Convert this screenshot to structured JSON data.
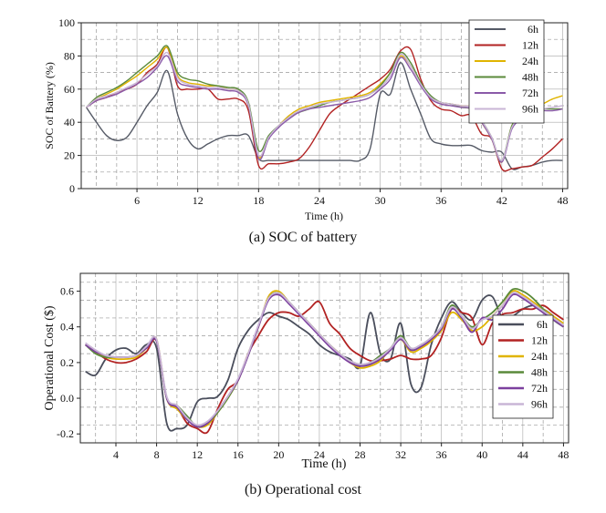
{
  "chart_data": [
    {
      "type": "line",
      "title": "",
      "caption": "(a) SOC of battery",
      "xlabel": "Time (h)",
      "ylabel": "SOC of Battery (%)",
      "xlim": [
        0.5,
        48.5
      ],
      "ylim": [
        0,
        100
      ],
      "xticks": [
        6,
        12,
        18,
        24,
        30,
        36,
        42,
        48
      ],
      "yticks": [
        0,
        20,
        40,
        60,
        80,
        100
      ],
      "legend_position": "top-right",
      "x": [
        1,
        2,
        3,
        4,
        5,
        6,
        7,
        8,
        9,
        10,
        11,
        12,
        13,
        14,
        15,
        16,
        17,
        18,
        19,
        20,
        21,
        22,
        23,
        24,
        25,
        26,
        27,
        28,
        29,
        30,
        31,
        32,
        33,
        34,
        35,
        36,
        37,
        38,
        39,
        40,
        41,
        42,
        43,
        44,
        45,
        46,
        47,
        48
      ],
      "series": [
        {
          "name": "6h",
          "color": "#555a66",
          "values": [
            49,
            40,
            32,
            29,
            31,
            40,
            50,
            58,
            71,
            45,
            30,
            24,
            27,
            30,
            32,
            32,
            32,
            18,
            17,
            17,
            17,
            17,
            17,
            17,
            17,
            17,
            17,
            17,
            24,
            57,
            57,
            76,
            60,
            45,
            30,
            27,
            26,
            26,
            26,
            23,
            22,
            22,
            12,
            13,
            14,
            16,
            17,
            17
          ]
        },
        {
          "name": "12h",
          "color": "#b22222",
          "values": [
            49,
            53,
            55,
            58,
            60,
            63,
            70,
            75,
            85,
            62,
            60,
            60,
            60,
            54,
            54,
            54,
            47,
            14,
            15,
            15,
            16,
            18,
            25,
            35,
            45,
            50,
            54,
            58,
            62,
            66,
            72,
            83,
            84,
            66,
            53,
            48,
            47,
            44,
            44,
            33,
            30,
            12,
            12,
            13,
            14,
            19,
            24,
            30
          ]
        },
        {
          "name": "24h",
          "color": "#e0b400",
          "values": [
            49,
            54,
            57,
            60,
            64,
            68,
            73,
            78,
            85,
            68,
            64,
            63,
            62,
            62,
            60,
            59,
            50,
            19,
            31,
            38,
            44,
            48,
            50,
            52,
            53,
            54,
            55,
            56,
            58,
            63,
            70,
            80,
            74,
            63,
            55,
            52,
            51,
            50,
            49,
            40,
            30,
            16,
            38,
            44,
            49,
            51,
            54,
            56
          ]
        },
        {
          "name": "48h",
          "color": "#5a8a3a",
          "values": [
            49,
            55,
            58,
            61,
            65,
            70,
            75,
            80,
            86,
            70,
            66,
            65,
            63,
            62,
            61,
            60,
            52,
            23,
            32,
            38,
            43,
            46,
            48,
            50,
            52,
            53,
            54,
            55,
            57,
            62,
            70,
            82,
            76,
            64,
            56,
            52,
            51,
            49,
            48,
            41,
            31,
            17,
            38,
            44,
            47,
            48,
            48,
            48
          ]
        },
        {
          "name": "72h",
          "color": "#8a5aa8",
          "values": [
            49,
            53,
            55,
            57,
            60,
            63,
            67,
            73,
            80,
            65,
            62,
            61,
            60,
            60,
            59,
            58,
            50,
            18,
            30,
            37,
            42,
            46,
            48,
            49,
            50,
            51,
            52,
            53,
            55,
            60,
            66,
            79,
            72,
            62,
            54,
            51,
            50,
            49,
            48,
            40,
            30,
            16,
            36,
            42,
            46,
            47,
            47,
            48
          ]
        },
        {
          "name": "96h",
          "color": "#c9b5d6",
          "values": [
            49,
            54,
            56,
            58,
            61,
            64,
            69,
            74,
            82,
            67,
            63,
            62,
            61,
            61,
            60,
            59,
            51,
            20,
            31,
            38,
            43,
            47,
            49,
            51,
            52,
            53,
            54,
            55,
            57,
            61,
            68,
            81,
            74,
            63,
            55,
            52,
            51,
            50,
            49,
            41,
            31,
            17,
            37,
            43,
            47,
            48,
            49,
            50
          ]
        }
      ],
      "legend_entries": [
        "6h",
        "12h",
        "24h",
        "48h",
        "72h",
        "96h"
      ]
    },
    {
      "type": "line",
      "title": "",
      "caption": "(b) Operational cost",
      "xlabel": "Time (h)",
      "ylabel": "Operational Cost ($)",
      "xlim": [
        0.5,
        48.5
      ],
      "ylim": [
        -0.25,
        0.7
      ],
      "xticks": [
        4,
        8,
        12,
        16,
        20,
        24,
        28,
        32,
        36,
        40,
        44,
        48
      ],
      "yticks": [
        -0.2,
        0.0,
        0.2,
        0.4,
        0.6
      ],
      "ytick_labels": [
        "-0.2",
        "0.0",
        "0.2",
        "0.4",
        "0.6"
      ],
      "legend_position": "bottom-right",
      "x": [
        1,
        2,
        3,
        4,
        5,
        6,
        7,
        8,
        9,
        10,
        11,
        12,
        13,
        14,
        15,
        16,
        17,
        18,
        19,
        20,
        21,
        22,
        23,
        24,
        25,
        26,
        27,
        28,
        29,
        30,
        31,
        32,
        33,
        34,
        35,
        36,
        37,
        38,
        39,
        40,
        41,
        42,
        43,
        44,
        45,
        46,
        47,
        48
      ],
      "series": [
        {
          "name": "6h",
          "color": "#4a4e5c",
          "values": [
            0.15,
            0.13,
            0.22,
            0.27,
            0.28,
            0.25,
            0.3,
            0.28,
            -0.14,
            -0.17,
            -0.15,
            -0.02,
            0.0,
            0.01,
            0.1,
            0.28,
            0.38,
            0.44,
            0.48,
            0.46,
            0.44,
            0.4,
            0.36,
            0.3,
            0.26,
            0.24,
            0.22,
            0.18,
            0.48,
            0.25,
            0.22,
            0.42,
            0.08,
            0.06,
            0.3,
            0.45,
            0.54,
            0.48,
            0.44,
            0.55,
            0.57,
            0.45,
            0.46,
            0.5,
            0.52,
            0.5,
            0.46,
            0.4
          ]
        },
        {
          "name": "12h",
          "color": "#b22222",
          "values": [
            0.3,
            0.26,
            0.22,
            0.2,
            0.2,
            0.22,
            0.26,
            0.32,
            0.0,
            -0.05,
            -0.14,
            -0.17,
            -0.19,
            -0.06,
            0.05,
            0.1,
            0.25,
            0.35,
            0.44,
            0.48,
            0.48,
            0.46,
            0.5,
            0.54,
            0.42,
            0.36,
            0.28,
            0.24,
            0.21,
            0.21,
            0.22,
            0.24,
            0.22,
            0.22,
            0.24,
            0.34,
            0.5,
            0.48,
            0.45,
            0.3,
            0.42,
            0.47,
            0.48,
            0.5,
            0.5,
            0.52,
            0.48,
            0.44
          ]
        },
        {
          "name": "24h",
          "color": "#e0b400",
          "values": [
            0.3,
            0.26,
            0.23,
            0.22,
            0.22,
            0.23,
            0.28,
            0.33,
            0.0,
            -0.06,
            -0.12,
            -0.16,
            -0.15,
            -0.08,
            0.0,
            0.1,
            0.25,
            0.4,
            0.57,
            0.6,
            0.54,
            0.48,
            0.42,
            0.36,
            0.3,
            0.25,
            0.2,
            0.17,
            0.18,
            0.21,
            0.28,
            0.33,
            0.26,
            0.28,
            0.32,
            0.38,
            0.48,
            0.44,
            0.38,
            0.4,
            0.46,
            0.52,
            0.6,
            0.58,
            0.54,
            0.5,
            0.46,
            0.42
          ]
        },
        {
          "name": "48h",
          "color": "#5a8a3a",
          "values": [
            0.3,
            0.25,
            0.23,
            0.23,
            0.23,
            0.24,
            0.28,
            0.32,
            0.0,
            -0.04,
            -0.1,
            -0.16,
            -0.14,
            -0.08,
            0.0,
            0.1,
            0.24,
            0.4,
            0.56,
            0.59,
            0.54,
            0.48,
            0.42,
            0.36,
            0.3,
            0.25,
            0.21,
            0.19,
            0.2,
            0.24,
            0.28,
            0.35,
            0.28,
            0.3,
            0.34,
            0.4,
            0.52,
            0.46,
            0.4,
            0.44,
            0.48,
            0.54,
            0.61,
            0.6,
            0.56,
            0.5,
            0.44,
            0.4
          ]
        },
        {
          "name": "72h",
          "color": "#7b3f9e",
          "values": [
            0.3,
            0.26,
            0.24,
            0.23,
            0.23,
            0.24,
            0.28,
            0.32,
            0.0,
            -0.05,
            -0.12,
            -0.16,
            -0.14,
            -0.07,
            0.01,
            0.1,
            0.24,
            0.4,
            0.55,
            0.58,
            0.53,
            0.47,
            0.41,
            0.35,
            0.29,
            0.24,
            0.2,
            0.18,
            0.19,
            0.22,
            0.27,
            0.33,
            0.27,
            0.29,
            0.33,
            0.39,
            0.5,
            0.45,
            0.37,
            0.45,
            0.44,
            0.5,
            0.58,
            0.56,
            0.52,
            0.48,
            0.44,
            0.4
          ]
        },
        {
          "name": "96h",
          "color": "#c9b5d6",
          "values": [
            0.31,
            0.27,
            0.24,
            0.23,
            0.23,
            0.24,
            0.29,
            0.33,
            0.01,
            -0.04,
            -0.11,
            -0.15,
            -0.13,
            -0.07,
            0.01,
            0.11,
            0.25,
            0.41,
            0.56,
            0.59,
            0.54,
            0.48,
            0.42,
            0.36,
            0.3,
            0.25,
            0.21,
            0.19,
            0.2,
            0.23,
            0.28,
            0.34,
            0.28,
            0.3,
            0.34,
            0.4,
            0.51,
            0.46,
            0.39,
            0.44,
            0.46,
            0.52,
            0.59,
            0.57,
            0.53,
            0.49,
            0.45,
            0.41
          ]
        }
      ],
      "legend_entries": [
        "6h",
        "12h",
        "24h",
        "48h",
        "72h",
        "96h"
      ]
    }
  ]
}
